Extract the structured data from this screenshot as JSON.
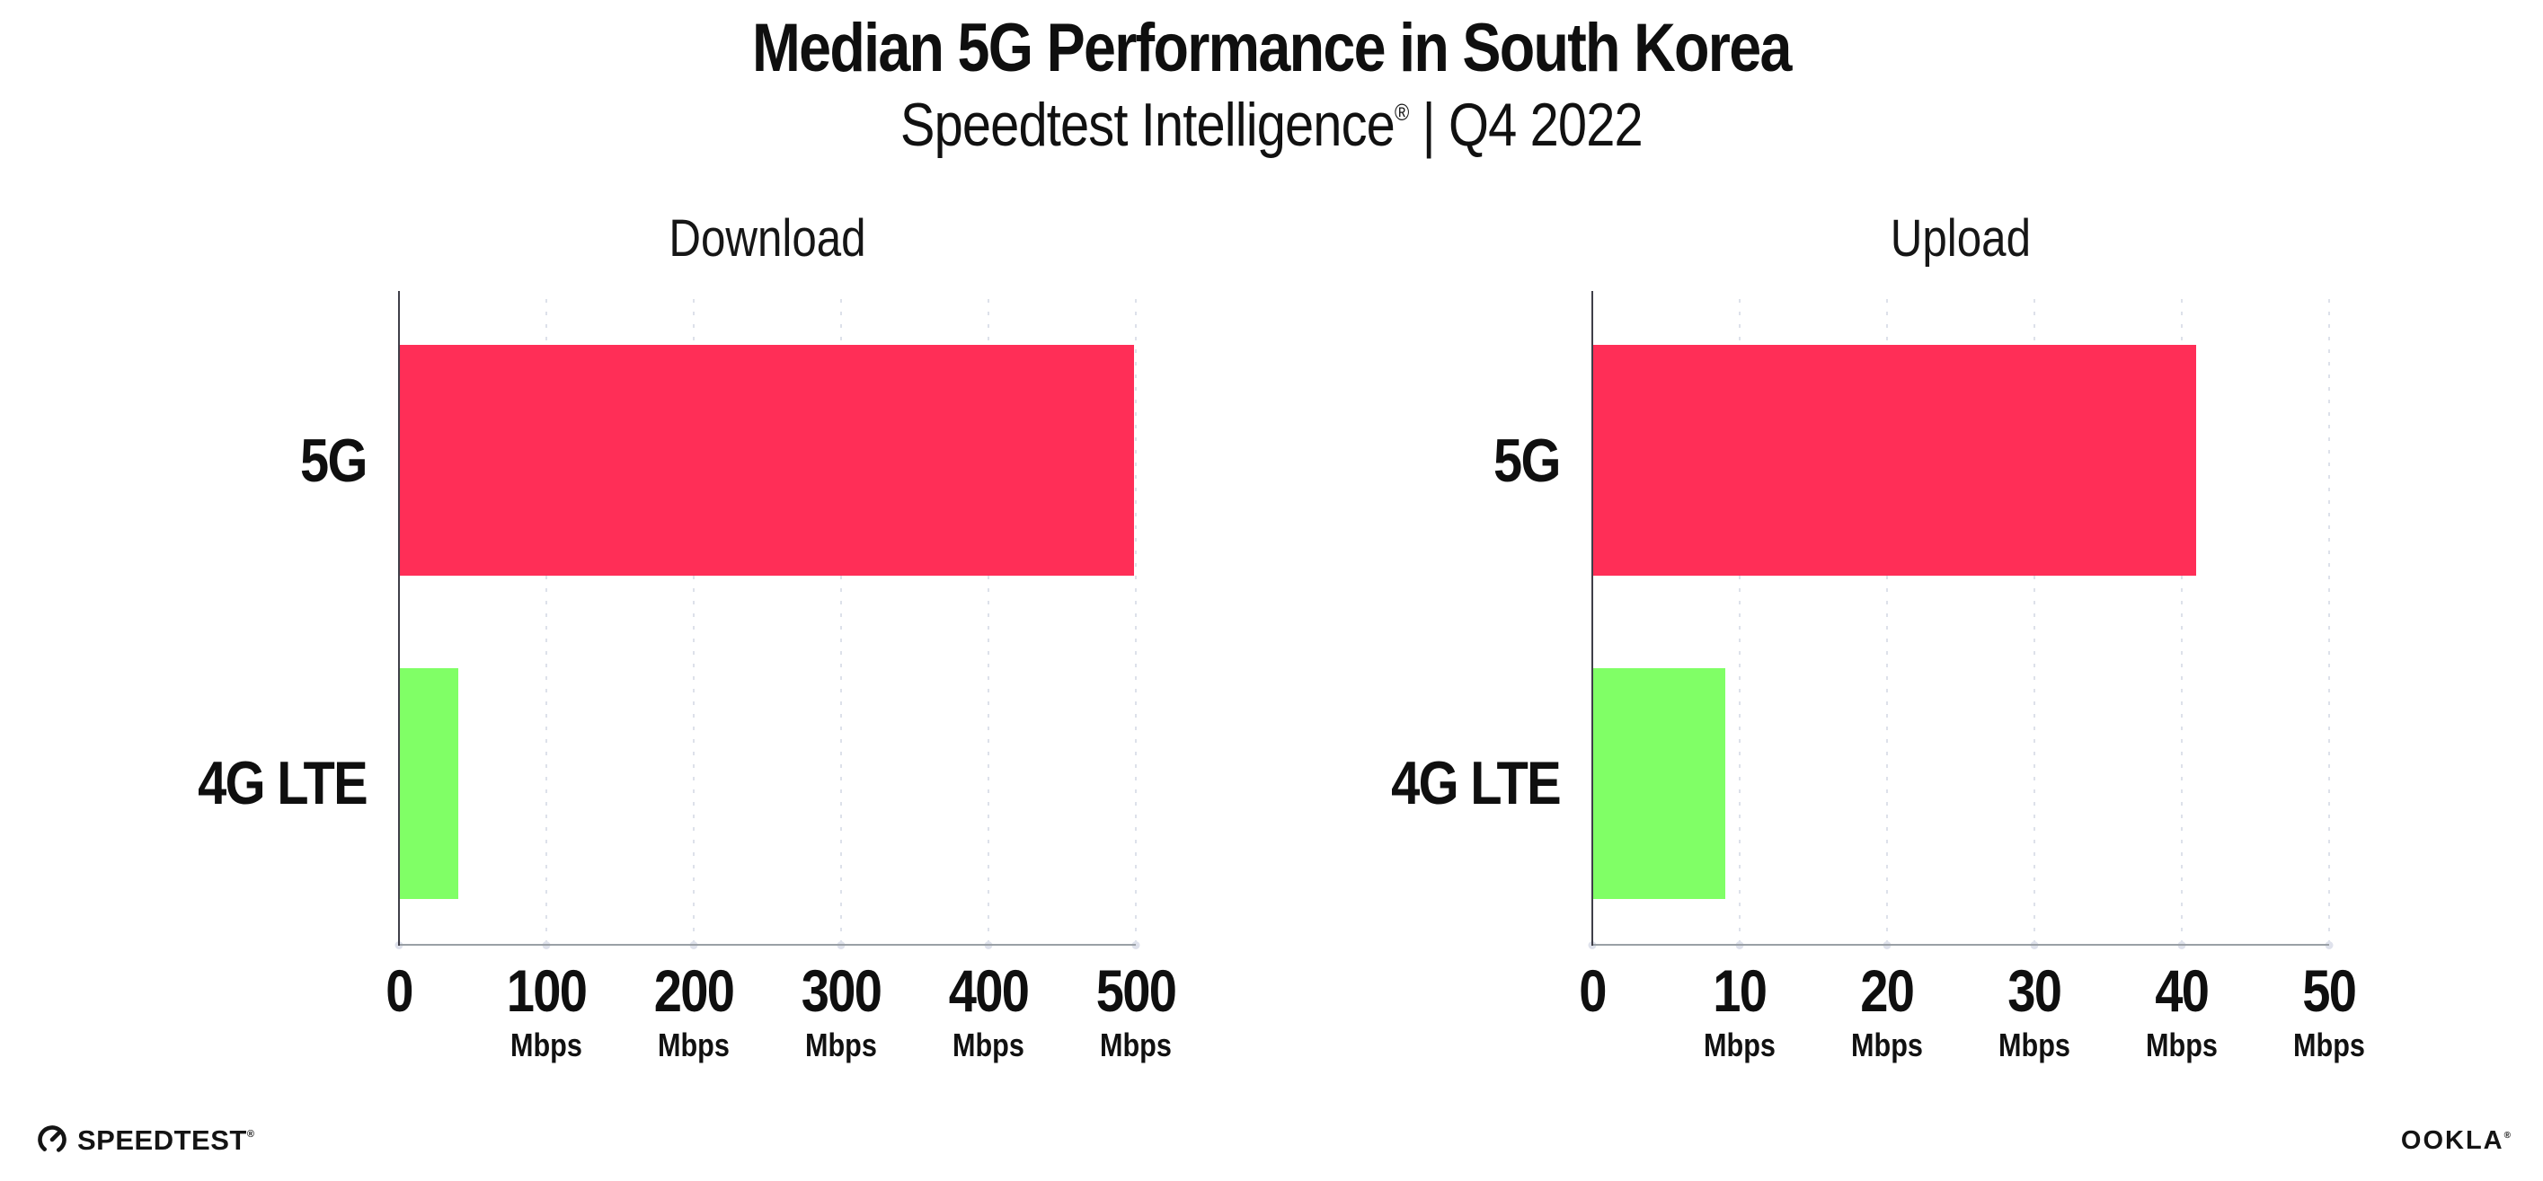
{
  "header": {
    "title": "Median 5G Performance in South Korea",
    "subtitle_brand": "Speedtest Intelligence",
    "subtitle_registered": "®",
    "subtitle_rest": " | Q4 2022"
  },
  "chart_data": [
    {
      "type": "bar",
      "orientation": "horizontal",
      "title": "Download",
      "categories": [
        "5G",
        "4G LTE"
      ],
      "values": [
        499,
        40
      ],
      "unit": "Mbps",
      "xlim": [
        0,
        500
      ],
      "xticks": [
        0,
        100,
        200,
        300,
        400,
        500
      ],
      "bar_colors": [
        "#FF2E57",
        "#80FF66"
      ],
      "grid": "vertical-dotted",
      "legend": "none"
    },
    {
      "type": "bar",
      "orientation": "horizontal",
      "title": "Upload",
      "categories": [
        "5G",
        "4G LTE"
      ],
      "values": [
        41,
        9
      ],
      "unit": "Mbps",
      "xlim": [
        0,
        50
      ],
      "xticks": [
        0,
        10,
        20,
        30,
        40,
        50
      ],
      "bar_colors": [
        "#FF2E57",
        "#80FF66"
      ],
      "grid": "vertical-dotted",
      "legend": "none"
    }
  ],
  "footer": {
    "speedtest_text": "SPEEDTEST",
    "speedtest_mark": "®",
    "ookla_text": "OOKLA",
    "ookla_mark": "®"
  },
  "colors": {
    "bar_5g": "#FF2E57",
    "bar_4g_lte": "#80FF66",
    "gridline": "#dde1ea",
    "x_axis": "#9aa0a6",
    "y_axis": "#3f3f49",
    "text": "#0f0f0f",
    "background": "#ffffff"
  }
}
